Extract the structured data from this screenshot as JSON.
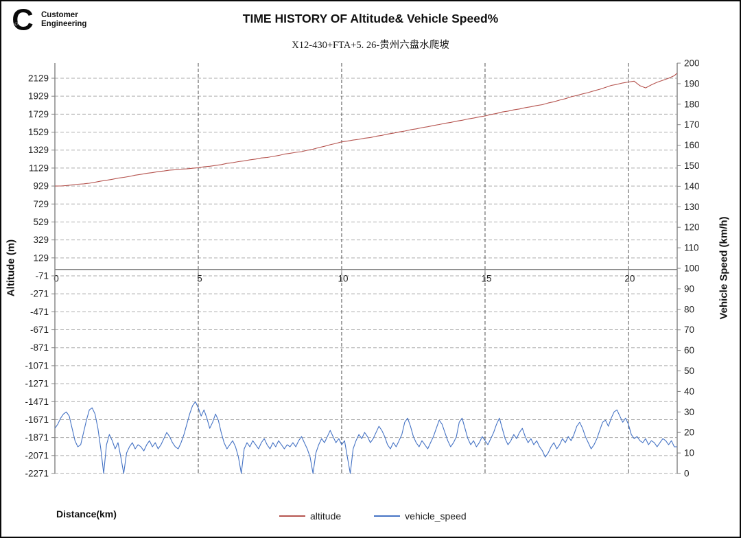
{
  "header": {
    "logo": {
      "brand_script": "Cummins",
      "line1": "Customer",
      "line2": "Engineering"
    },
    "title": "TIME HISTORY OF Altitude& Vehicle Speed%",
    "subtitle": "X12-430+FTA+5. 26-贵州六盘水爬坡"
  },
  "chart_data": {
    "type": "line",
    "title": "TIME HISTORY OF Altitude& Vehicle Speed%",
    "subtitle": "X12-430+FTA+5. 26-贵州六盘水爬坡",
    "xlabel": "Distance(km)",
    "x_range": [
      0,
      21.7
    ],
    "x_ticks": [
      0,
      5,
      10,
      15,
      20
    ],
    "grid": {
      "horizontal": "dashed",
      "vertical_at_x_ticks": "dashed",
      "x_axis_crosses_at_left_value": 0
    },
    "left_axis": {
      "label": "Altitude (m)",
      "min": -2271,
      "max": 2129,
      "tick_step": 200,
      "ticks": [
        2129,
        1929,
        1729,
        1529,
        1329,
        1129,
        929,
        729,
        529,
        329,
        129,
        -71,
        -271,
        -471,
        -671,
        -871,
        -1071,
        -1271,
        -1471,
        -1671,
        -1871,
        -2071,
        -2271
      ]
    },
    "right_axis": {
      "label": "Vehicle Speed (km/h)",
      "min": 0,
      "max": 200,
      "tick_step": 10,
      "ticks": [
        200,
        190,
        180,
        170,
        160,
        150,
        140,
        130,
        120,
        110,
        100,
        90,
        80,
        70,
        60,
        50,
        40,
        30,
        20,
        10,
        0
      ]
    },
    "legend_position": "bottom",
    "series": [
      {
        "name": "altitude",
        "axis": "left",
        "color": "#B5534E",
        "step_km": 0.2,
        "values": [
          929,
          930,
          934,
          942,
          949,
          953,
          960,
          971,
          984,
          993,
          1004,
          1017,
          1025,
          1036,
          1050,
          1059,
          1070,
          1078,
          1089,
          1096,
          1106,
          1110,
          1117,
          1120,
          1127,
          1133,
          1143,
          1149,
          1158,
          1167,
          1181,
          1189,
          1201,
          1209,
          1221,
          1229,
          1241,
          1247,
          1258,
          1269,
          1284,
          1293,
          1304,
          1312,
          1327,
          1339,
          1357,
          1371,
          1389,
          1403,
          1421,
          1429,
          1441,
          1449,
          1461,
          1469,
          1483,
          1493,
          1507,
          1517,
          1531,
          1541,
          1555,
          1565,
          1579,
          1589,
          1603,
          1613,
          1627,
          1637,
          1651,
          1661,
          1675,
          1685,
          1699,
          1709,
          1725,
          1737,
          1753,
          1763,
          1777,
          1787,
          1801,
          1811,
          1825,
          1835,
          1853,
          1867,
          1885,
          1901,
          1923,
          1937,
          1955,
          1969,
          1989,
          2006,
          2027,
          2049,
          2061,
          2076,
          2087,
          2096,
          2046,
          2021,
          2056,
          2084,
          2106,
          2129,
          2157,
          2186
        ]
      },
      {
        "name": "vehicle_speed",
        "axis": "right",
        "color": "#4472C4",
        "step_km": 0.1,
        "values": [
          22,
          24,
          27,
          29,
          30,
          28,
          22,
          16,
          13,
          14,
          20,
          26,
          31,
          32,
          29,
          22,
          12,
          0,
          14,
          19,
          16,
          12,
          15,
          8,
          0,
          10,
          13,
          15,
          12,
          14,
          13,
          11,
          14,
          16,
          13,
          15,
          12,
          14,
          17,
          20,
          18,
          15,
          13,
          12,
          15,
          19,
          24,
          29,
          33,
          35,
          32,
          28,
          31,
          27,
          22,
          25,
          29,
          26,
          20,
          15,
          12,
          14,
          16,
          13,
          8,
          0,
          12,
          15,
          13,
          16,
          14,
          12,
          15,
          17,
          14,
          12,
          15,
          13,
          16,
          14,
          12,
          14,
          13,
          15,
          13,
          16,
          18,
          15,
          12,
          8,
          0,
          10,
          14,
          17,
          15,
          18,
          21,
          18,
          15,
          17,
          14,
          16,
          8,
          0,
          12,
          16,
          19,
          17,
          20,
          18,
          15,
          17,
          20,
          23,
          21,
          18,
          14,
          12,
          15,
          13,
          16,
          19,
          25,
          27,
          23,
          18,
          15,
          13,
          16,
          14,
          12,
          15,
          18,
          22,
          26,
          24,
          20,
          16,
          13,
          15,
          18,
          25,
          27,
          22,
          17,
          14,
          16,
          13,
          15,
          18,
          16,
          14,
          17,
          20,
          24,
          27,
          22,
          17,
          14,
          16,
          19,
          17,
          20,
          22,
          18,
          15,
          17,
          14,
          16,
          13,
          11,
          8,
          10,
          13,
          15,
          12,
          14,
          17,
          15,
          18,
          16,
          19,
          23,
          25,
          22,
          18,
          15,
          12,
          14,
          17,
          21,
          25,
          26,
          23,
          27,
          30,
          31,
          28,
          25,
          27,
          24,
          19,
          17,
          18,
          16,
          15,
          17,
          14,
          16,
          15,
          13,
          15,
          17,
          16,
          14,
          16,
          13,
          13
        ]
      }
    ]
  },
  "footer": {
    "xlabel": "Distance(km)",
    "legend": [
      {
        "label": "altitude",
        "color": "#B5534E"
      },
      {
        "label": "vehicle_speed",
        "color": "#4472C4"
      }
    ]
  },
  "colors": {
    "altitude_line": "#B5534E",
    "speed_line": "#4472C4",
    "h_grid": "#ABABAB",
    "v_grid": "#4D4D4D",
    "axis_line": "#808080",
    "tick_text": "#1f1f1f"
  }
}
